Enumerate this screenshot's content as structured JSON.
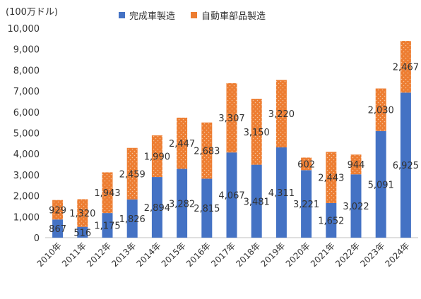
{
  "chart_data": {
    "type": "bar",
    "stacked": true,
    "unit_label": "(100万ドル)",
    "categories": [
      "2010年",
      "2011年",
      "2012年",
      "2013年",
      "2014年",
      "2015年",
      "2016年",
      "2017年",
      "2018年",
      "2019年",
      "2020年",
      "2021年",
      "2022年",
      "2023年",
      "2024年"
    ],
    "series": [
      {
        "name": "完成車製造",
        "color": "#4472C4",
        "values": [
          867,
          516,
          1175,
          1826,
          2894,
          3282,
          2815,
          4067,
          3481,
          4311,
          3221,
          1652,
          3022,
          5091,
          6925
        ]
      },
      {
        "name": "自動車部品製造",
        "color": "#ED7D31",
        "values": [
          929,
          1320,
          1943,
          2459,
          1990,
          2447,
          2683,
          3307,
          3150,
          3220,
          602,
          2443,
          944,
          2030,
          2467
        ]
      }
    ],
    "y_ticks": [
      "0",
      "1,000",
      "2,000",
      "3,000",
      "4,000",
      "5,000",
      "6,000",
      "7,000",
      "8,000",
      "9,000",
      "10,000"
    ],
    "ylim": [
      0,
      10000
    ],
    "legend_position": "top",
    "grid": false
  }
}
